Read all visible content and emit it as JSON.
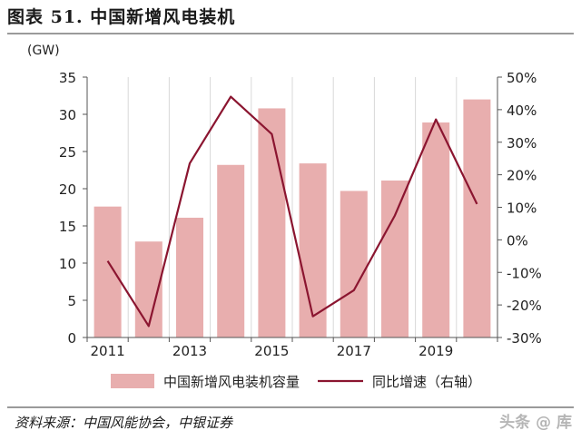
{
  "header": {
    "title": "图表 51. 中国新增风电装机"
  },
  "footer": {
    "source": "资料来源：中国风能协会，中银证券",
    "watermark": "头条 @ 库"
  },
  "colors": {
    "bar": "#e8aeae",
    "line": "#8b1530",
    "grid": "#d8d8d8",
    "axis": "#555555"
  },
  "chart_data": {
    "type": "bar+line",
    "unit_left": "(GW)",
    "categories": [
      "2011",
      "2012",
      "2013",
      "2014",
      "2015",
      "2016",
      "2017",
      "2018",
      "2019",
      "2020"
    ],
    "x_tick_labels": [
      "2011",
      "",
      "2013",
      "",
      "2015",
      "",
      "2017",
      "",
      "2019",
      ""
    ],
    "series": [
      {
        "name": "中国新增风电装机容量",
        "type": "bar",
        "axis": "left",
        "values": [
          17.6,
          12.9,
          16.1,
          23.2,
          30.8,
          23.4,
          19.7,
          21.1,
          28.9,
          32.0
        ]
      },
      {
        "name": "同比增速（右轴）",
        "type": "line",
        "axis": "right",
        "values": [
          -6.5,
          -26.5,
          23.5,
          44.0,
          32.5,
          -23.5,
          -15.5,
          7.5,
          37.0,
          11.0
        ]
      }
    ],
    "left_axis": {
      "ylim": [
        0,
        35
      ],
      "ticks": [
        "35",
        "30",
        "25",
        "20",
        "15",
        "10",
        "5",
        "0"
      ]
    },
    "right_axis": {
      "ylim": [
        -30,
        50
      ],
      "ticks": [
        "50%",
        "40%",
        "30%",
        "20%",
        "10%",
        "0%",
        "-10%",
        "-20%",
        "-30%"
      ]
    },
    "grid": "vertical",
    "legend_position": "bottom"
  }
}
